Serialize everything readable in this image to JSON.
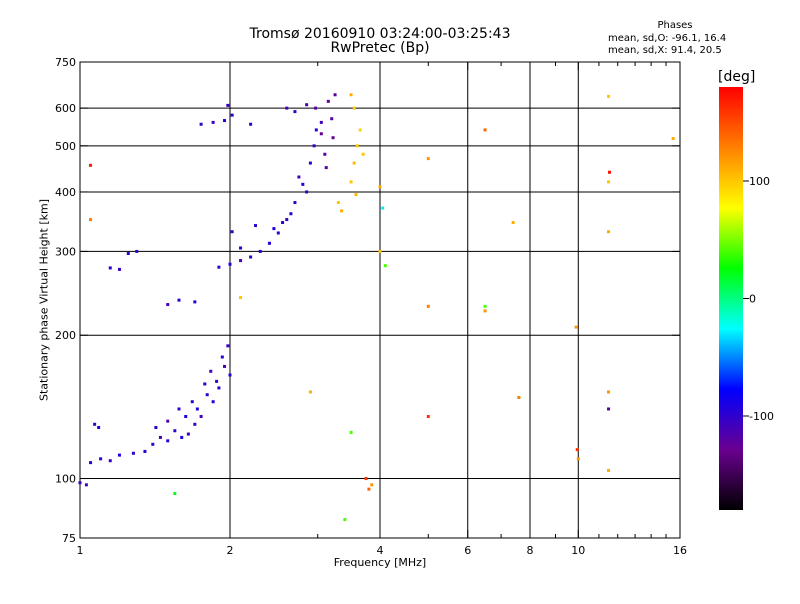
{
  "header": {
    "title": "Tromsø 20160910 03:24:00-03:25:43",
    "subtitle": "RwPretec (Bp)",
    "stats_title": "Phases",
    "stats_o": "mean, sd,O: -96.1, 16.4",
    "stats_x": "mean, sd,X:  91.4, 20.5"
  },
  "colorbar": {
    "unit": "[deg]",
    "ticks": [
      {
        "value": 100,
        "label": "100"
      },
      {
        "value": 0,
        "label": "0"
      },
      {
        "value": -100,
        "label": "-100"
      }
    ],
    "range": [
      -180,
      180
    ],
    "stops": [
      "#000000",
      "#6a0090",
      "#0000ff",
      "#00ffff",
      "#00ff00",
      "#ffff00",
      "#ff8000",
      "#ff0000"
    ]
  },
  "chart_data": {
    "type": "scatter",
    "title": "Tromsø 20160910 03:24:00-03:25:43",
    "subtitle": "RwPretec (Bp)",
    "xlabel": "Frequency [MHz]",
    "ylabel": "Stationary phase Virtual Height [km]",
    "xscale": "log",
    "yscale": "log",
    "xlim": [
      1,
      16
    ],
    "ylim": [
      75,
      750
    ],
    "xticks": [
      {
        "value": 1,
        "label": "1"
      },
      {
        "value": 2,
        "label": "2"
      },
      {
        "value": 4,
        "label": "4"
      },
      {
        "value": 6,
        "label": "6"
      },
      {
        "value": 8,
        "label": "8"
      },
      {
        "value": 10,
        "label": "10"
      },
      {
        "value": 16,
        "label": "16"
      }
    ],
    "xgrid": [
      2,
      4,
      6,
      8,
      10
    ],
    "xminor": [
      3,
      5,
      7,
      9,
      11,
      12,
      13,
      14,
      15
    ],
    "yticks": [
      {
        "value": 75,
        "label": "75"
      },
      {
        "value": 100,
        "label": "100"
      },
      {
        "value": 200,
        "label": "200"
      },
      {
        "value": 300,
        "label": "300"
      },
      {
        "value": 400,
        "label": "400"
      },
      {
        "value": 500,
        "label": "500"
      },
      {
        "value": 600,
        "label": "600"
      },
      {
        "value": 750,
        "label": "750"
      }
    ],
    "ygrid": [
      100,
      200,
      300,
      400,
      500,
      600
    ],
    "color_scale": "phase [deg]",
    "series": [
      {
        "points": [
          [
            1.0,
            98,
            -105
          ],
          [
            1.03,
            97,
            -110
          ],
          [
            1.05,
            108,
            -95
          ],
          [
            1.1,
            110,
            -100
          ],
          [
            1.15,
            109,
            -105
          ],
          [
            1.2,
            112,
            -90
          ],
          [
            1.28,
            113,
            -100
          ],
          [
            1.35,
            114,
            -95
          ],
          [
            1.4,
            118,
            -100
          ],
          [
            1.45,
            122,
            -110
          ],
          [
            1.5,
            120,
            -95
          ],
          [
            1.55,
            126,
            -100
          ],
          [
            1.6,
            122,
            -90
          ],
          [
            1.65,
            124,
            -105
          ],
          [
            1.7,
            130,
            -100
          ],
          [
            1.72,
            140,
            -95
          ],
          [
            1.75,
            135,
            -110
          ],
          [
            1.8,
            150,
            -100
          ],
          [
            1.85,
            145,
            -90
          ],
          [
            1.88,
            160,
            -100
          ],
          [
            1.9,
            155,
            -95
          ],
          [
            1.95,
            172,
            -110
          ],
          [
            1.98,
            190,
            -105
          ],
          [
            2.0,
            165,
            -95
          ],
          [
            1.42,
            128,
            -100
          ],
          [
            1.5,
            132,
            -115
          ],
          [
            1.58,
            140,
            -100
          ],
          [
            1.63,
            135,
            -90
          ],
          [
            1.68,
            145,
            -100
          ],
          [
            1.78,
            158,
            -95
          ],
          [
            1.83,
            168,
            -110
          ],
          [
            1.93,
            180,
            -100
          ],
          [
            1.07,
            130,
            -100
          ],
          [
            1.09,
            128,
            -95
          ]
        ]
      },
      {
        "points": [
          [
            1.15,
            277,
            -100
          ],
          [
            1.2,
            275,
            -105
          ],
          [
            1.25,
            297,
            -95
          ],
          [
            1.5,
            232,
            -110
          ],
          [
            1.58,
            237,
            -100
          ],
          [
            1.7,
            235,
            -95
          ],
          [
            1.3,
            300,
            -100
          ]
        ]
      },
      {
        "points": [
          [
            1.9,
            278,
            -100
          ],
          [
            2.0,
            282,
            -95
          ],
          [
            2.1,
            287,
            -110
          ],
          [
            2.2,
            292,
            -100
          ],
          [
            2.3,
            300,
            -90
          ],
          [
            2.4,
            312,
            -95
          ],
          [
            2.5,
            328,
            -100
          ],
          [
            2.6,
            350,
            -105
          ],
          [
            2.7,
            380,
            -100
          ],
          [
            2.8,
            415,
            -95
          ],
          [
            2.9,
            460,
            -100
          ],
          [
            2.95,
            500,
            -105
          ],
          [
            2.02,
            330,
            -100
          ],
          [
            2.1,
            305,
            -95
          ],
          [
            2.25,
            340,
            -100
          ],
          [
            2.45,
            335,
            -90
          ],
          [
            2.55,
            345,
            -100
          ],
          [
            2.75,
            430,
            -110
          ],
          [
            2.85,
            400,
            -100
          ],
          [
            2.65,
            360,
            -95
          ],
          [
            2.98,
            540,
            -100
          ],
          [
            3.05,
            560,
            -110
          ]
        ]
      },
      {
        "points": [
          [
            1.75,
            555,
            -100
          ],
          [
            1.85,
            560,
            -105
          ],
          [
            1.95,
            565,
            -95
          ],
          [
            2.02,
            580,
            -100
          ],
          [
            2.6,
            600,
            -110
          ],
          [
            2.7,
            590,
            -100
          ],
          [
            2.85,
            610,
            -115
          ],
          [
            1.98,
            608,
            -105
          ],
          [
            2.2,
            555,
            -100
          ]
        ]
      },
      {
        "points": [
          [
            2.97,
            600,
            -120
          ],
          [
            3.05,
            530,
            -125
          ],
          [
            3.1,
            480,
            -120
          ],
          [
            3.15,
            620,
            -125
          ],
          [
            3.2,
            570,
            -118
          ],
          [
            3.25,
            640,
            -122
          ],
          [
            3.12,
            450,
            -120
          ],
          [
            3.22,
            520,
            -125
          ]
        ]
      },
      {
        "points": [
          [
            3.3,
            380,
            100
          ],
          [
            3.35,
            365,
            110
          ],
          [
            3.5,
            420,
            100
          ],
          [
            3.55,
            460,
            105
          ],
          [
            3.6,
            500,
            100
          ],
          [
            3.65,
            540,
            95
          ],
          [
            3.55,
            600,
            100
          ],
          [
            3.5,
            640,
            110
          ],
          [
            3.7,
            480,
            100
          ],
          [
            3.58,
            395,
            105
          ]
        ]
      },
      {
        "points": [
          [
            4.0,
            410,
            110
          ],
          [
            4.0,
            300,
            100
          ],
          [
            5.0,
            470,
            120
          ],
          [
            5.0,
            230,
            130
          ],
          [
            6.5,
            540,
            140
          ],
          [
            6.5,
            230,
            40
          ],
          [
            6.5,
            225,
            120
          ],
          [
            7.4,
            345,
            110
          ],
          [
            7.6,
            148,
            130
          ],
          [
            9.9,
            208,
            120
          ],
          [
            9.95,
            115,
            160
          ],
          [
            10.0,
            110,
            120
          ],
          [
            11.5,
            635,
            100
          ],
          [
            11.55,
            440,
            175
          ],
          [
            11.5,
            420,
            100
          ],
          [
            11.5,
            330,
            110
          ],
          [
            11.5,
            152,
            120
          ],
          [
            11.5,
            140,
            -120
          ],
          [
            11.5,
            104,
            110
          ],
          [
            15.5,
            518,
            110
          ],
          [
            3.8,
            95,
            140
          ],
          [
            3.85,
            97,
            120
          ],
          [
            3.75,
            100,
            160
          ],
          [
            3.5,
            125,
            40
          ],
          [
            3.4,
            82,
            40
          ],
          [
            2.1,
            240,
            100
          ],
          [
            1.55,
            93,
            20
          ],
          [
            1.05,
            455,
            170
          ],
          [
            1.05,
            350,
            130
          ],
          [
            5.0,
            135,
            160
          ],
          [
            2.9,
            152,
            110
          ],
          [
            4.05,
            370,
            -30
          ],
          [
            4.1,
            280,
            40
          ]
        ]
      }
    ]
  }
}
